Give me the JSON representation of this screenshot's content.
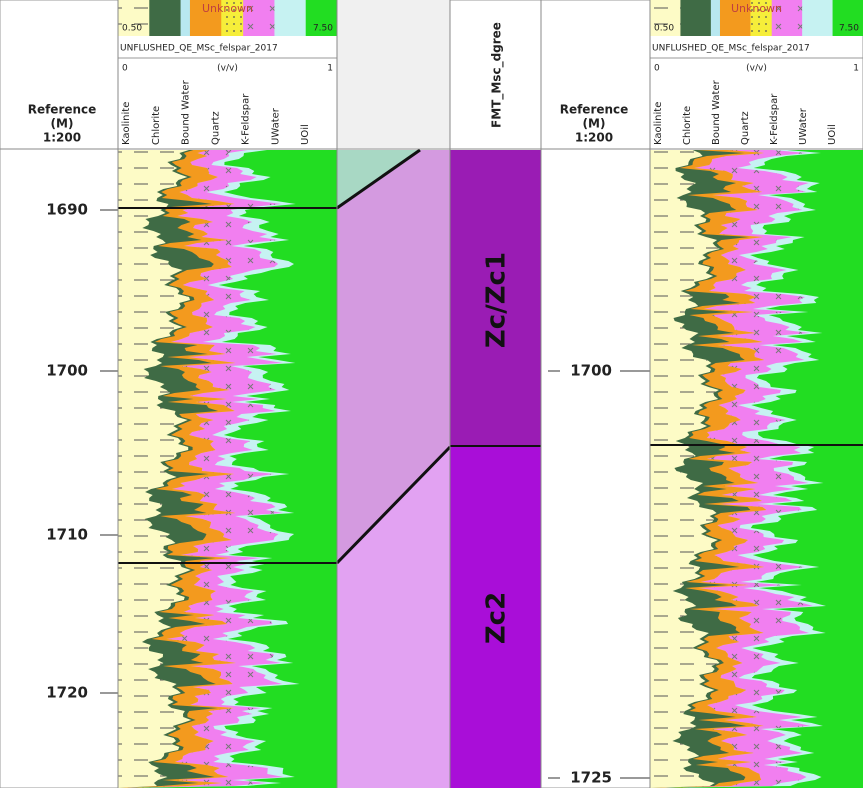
{
  "depth_header": {
    "reference": "Reference",
    "unit": "(M)",
    "scale": "1:200"
  },
  "left_depths": [
    "1690",
    "1700",
    "1710",
    "1720"
  ],
  "right_depths": [
    "1700",
    "1725"
  ],
  "lithology_header": {
    "legend_label": "Unknown",
    "min": "0.50",
    "max": "7.50",
    "curve": "UNFLUSHED_QE_MSc_felspar_2017",
    "scale_min": "0",
    "scale_unit": "(v/v)",
    "scale_max": "1",
    "components": [
      "Kaolinite",
      "Chlorite",
      "Bound Water",
      "Quartz",
      "K-Feldspar",
      "UWater",
      "UOil"
    ]
  },
  "zone_track": {
    "header": "FMT_Msc_dgree",
    "zones": [
      "Zc/Zc1",
      "Zc2"
    ]
  }
}
